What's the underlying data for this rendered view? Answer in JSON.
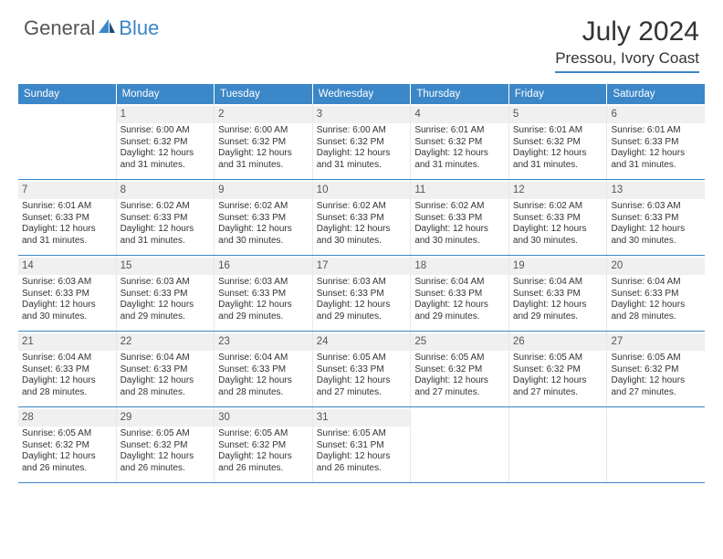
{
  "logo": {
    "text1": "General",
    "text2": "Blue",
    "color1": "#555555",
    "color2": "#3b87c8"
  },
  "title": "July 2024",
  "subtitle": "Pressou, Ivory Coast",
  "weekdays": [
    "Sunday",
    "Monday",
    "Tuesday",
    "Wednesday",
    "Thursday",
    "Friday",
    "Saturday"
  ],
  "colors": {
    "header_bg": "#3b87c8",
    "header_text": "#ffffff",
    "daynum_bg": "#f0f0f0",
    "border": "#3b87c8",
    "text": "#333333"
  },
  "font_sizes": {
    "title": 30,
    "subtitle": 17,
    "dayhead": 11.5,
    "daynum": 11.5,
    "cell": 10
  },
  "first_weekday_offset": 1,
  "days": [
    {
      "n": 1,
      "sunrise": "6:00 AM",
      "sunset": "6:32 PM",
      "daylight": "12 hours and 31 minutes."
    },
    {
      "n": 2,
      "sunrise": "6:00 AM",
      "sunset": "6:32 PM",
      "daylight": "12 hours and 31 minutes."
    },
    {
      "n": 3,
      "sunrise": "6:00 AM",
      "sunset": "6:32 PM",
      "daylight": "12 hours and 31 minutes."
    },
    {
      "n": 4,
      "sunrise": "6:01 AM",
      "sunset": "6:32 PM",
      "daylight": "12 hours and 31 minutes."
    },
    {
      "n": 5,
      "sunrise": "6:01 AM",
      "sunset": "6:32 PM",
      "daylight": "12 hours and 31 minutes."
    },
    {
      "n": 6,
      "sunrise": "6:01 AM",
      "sunset": "6:33 PM",
      "daylight": "12 hours and 31 minutes."
    },
    {
      "n": 7,
      "sunrise": "6:01 AM",
      "sunset": "6:33 PM",
      "daylight": "12 hours and 31 minutes."
    },
    {
      "n": 8,
      "sunrise": "6:02 AM",
      "sunset": "6:33 PM",
      "daylight": "12 hours and 31 minutes."
    },
    {
      "n": 9,
      "sunrise": "6:02 AM",
      "sunset": "6:33 PM",
      "daylight": "12 hours and 30 minutes."
    },
    {
      "n": 10,
      "sunrise": "6:02 AM",
      "sunset": "6:33 PM",
      "daylight": "12 hours and 30 minutes."
    },
    {
      "n": 11,
      "sunrise": "6:02 AM",
      "sunset": "6:33 PM",
      "daylight": "12 hours and 30 minutes."
    },
    {
      "n": 12,
      "sunrise": "6:02 AM",
      "sunset": "6:33 PM",
      "daylight": "12 hours and 30 minutes."
    },
    {
      "n": 13,
      "sunrise": "6:03 AM",
      "sunset": "6:33 PM",
      "daylight": "12 hours and 30 minutes."
    },
    {
      "n": 14,
      "sunrise": "6:03 AM",
      "sunset": "6:33 PM",
      "daylight": "12 hours and 30 minutes."
    },
    {
      "n": 15,
      "sunrise": "6:03 AM",
      "sunset": "6:33 PM",
      "daylight": "12 hours and 29 minutes."
    },
    {
      "n": 16,
      "sunrise": "6:03 AM",
      "sunset": "6:33 PM",
      "daylight": "12 hours and 29 minutes."
    },
    {
      "n": 17,
      "sunrise": "6:03 AM",
      "sunset": "6:33 PM",
      "daylight": "12 hours and 29 minutes."
    },
    {
      "n": 18,
      "sunrise": "6:04 AM",
      "sunset": "6:33 PM",
      "daylight": "12 hours and 29 minutes."
    },
    {
      "n": 19,
      "sunrise": "6:04 AM",
      "sunset": "6:33 PM",
      "daylight": "12 hours and 29 minutes."
    },
    {
      "n": 20,
      "sunrise": "6:04 AM",
      "sunset": "6:33 PM",
      "daylight": "12 hours and 28 minutes."
    },
    {
      "n": 21,
      "sunrise": "6:04 AM",
      "sunset": "6:33 PM",
      "daylight": "12 hours and 28 minutes."
    },
    {
      "n": 22,
      "sunrise": "6:04 AM",
      "sunset": "6:33 PM",
      "daylight": "12 hours and 28 minutes."
    },
    {
      "n": 23,
      "sunrise": "6:04 AM",
      "sunset": "6:33 PM",
      "daylight": "12 hours and 28 minutes."
    },
    {
      "n": 24,
      "sunrise": "6:05 AM",
      "sunset": "6:33 PM",
      "daylight": "12 hours and 27 minutes."
    },
    {
      "n": 25,
      "sunrise": "6:05 AM",
      "sunset": "6:32 PM",
      "daylight": "12 hours and 27 minutes."
    },
    {
      "n": 26,
      "sunrise": "6:05 AM",
      "sunset": "6:32 PM",
      "daylight": "12 hours and 27 minutes."
    },
    {
      "n": 27,
      "sunrise": "6:05 AM",
      "sunset": "6:32 PM",
      "daylight": "12 hours and 27 minutes."
    },
    {
      "n": 28,
      "sunrise": "6:05 AM",
      "sunset": "6:32 PM",
      "daylight": "12 hours and 26 minutes."
    },
    {
      "n": 29,
      "sunrise": "6:05 AM",
      "sunset": "6:32 PM",
      "daylight": "12 hours and 26 minutes."
    },
    {
      "n": 30,
      "sunrise": "6:05 AM",
      "sunset": "6:32 PM",
      "daylight": "12 hours and 26 minutes."
    },
    {
      "n": 31,
      "sunrise": "6:05 AM",
      "sunset": "6:31 PM",
      "daylight": "12 hours and 26 minutes."
    }
  ],
  "labels": {
    "sunrise": "Sunrise:",
    "sunset": "Sunset:",
    "daylight": "Daylight:"
  }
}
